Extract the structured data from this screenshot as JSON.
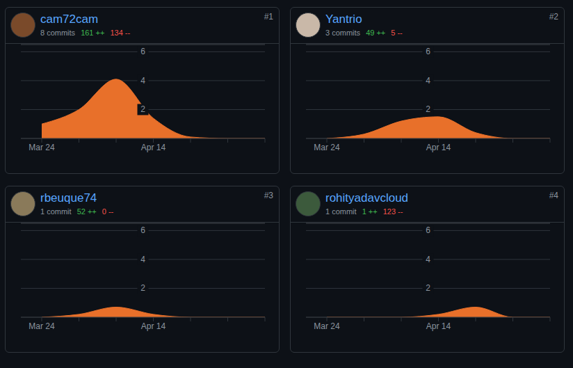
{
  "chart_data": [
    {
      "type": "area",
      "title": "cam72cam",
      "rank": "#1",
      "subtitle": "8 commits",
      "stats": [
        {
          "text": "161 ++",
          "color": "#3fb950"
        },
        {
          "text": "134 --",
          "color": "#f85149"
        }
      ],
      "categories": [
        "Mar 24",
        null,
        null,
        "Apr 14",
        null,
        null,
        null
      ],
      "values": [
        1,
        2,
        4.1,
        1.4,
        0.1,
        0,
        0
      ],
      "color": "#e8702a",
      "ylim": [
        0,
        6.5
      ],
      "yticks": [
        2,
        4,
        6
      ],
      "grid": true
    },
    {
      "type": "area",
      "title": "Yantrio",
      "rank": "#2",
      "subtitle": "3 commits",
      "stats": [
        {
          "text": "49 ++",
          "color": "#3fb950"
        },
        {
          "text": "5 --",
          "color": "#f85149"
        }
      ],
      "categories": [
        "Mar 24",
        null,
        null,
        "Apr 14",
        null,
        null,
        null
      ],
      "values": [
        0,
        0.3,
        1.2,
        1.5,
        0.4,
        0,
        0
      ],
      "color": "#e8702a",
      "ylim": [
        0,
        6.5
      ],
      "yticks": [
        2,
        4,
        6
      ],
      "grid": true
    },
    {
      "type": "area",
      "title": "rbeuque74",
      "rank": "#3",
      "subtitle": "1 commit",
      "stats": [
        {
          "text": "52 ++",
          "color": "#3fb950"
        },
        {
          "text": "0 --",
          "color": "#f85149"
        }
      ],
      "categories": [
        "Mar 24",
        null,
        null,
        "Apr 14",
        null,
        null,
        null
      ],
      "values": [
        0,
        0.2,
        0.7,
        0.2,
        0,
        0,
        0
      ],
      "color": "#e8702a",
      "ylim": [
        0,
        6.5
      ],
      "yticks": [
        2,
        4,
        6
      ],
      "grid": true
    },
    {
      "type": "area",
      "title": "rohityadavcloud",
      "rank": "#4",
      "subtitle": "1 commit",
      "stats": [
        {
          "text": "1 ++",
          "color": "#3fb950"
        },
        {
          "text": "123 --",
          "color": "#f85149"
        }
      ],
      "categories": [
        "Mar 24",
        null,
        null,
        "Apr 14",
        null,
        null,
        null
      ],
      "values": [
        0,
        0,
        0,
        0.2,
        0.7,
        0,
        0
      ],
      "color": "#e8702a",
      "ylim": [
        0,
        6.5
      ],
      "yticks": [
        2,
        4,
        6
      ],
      "grid": true
    }
  ]
}
